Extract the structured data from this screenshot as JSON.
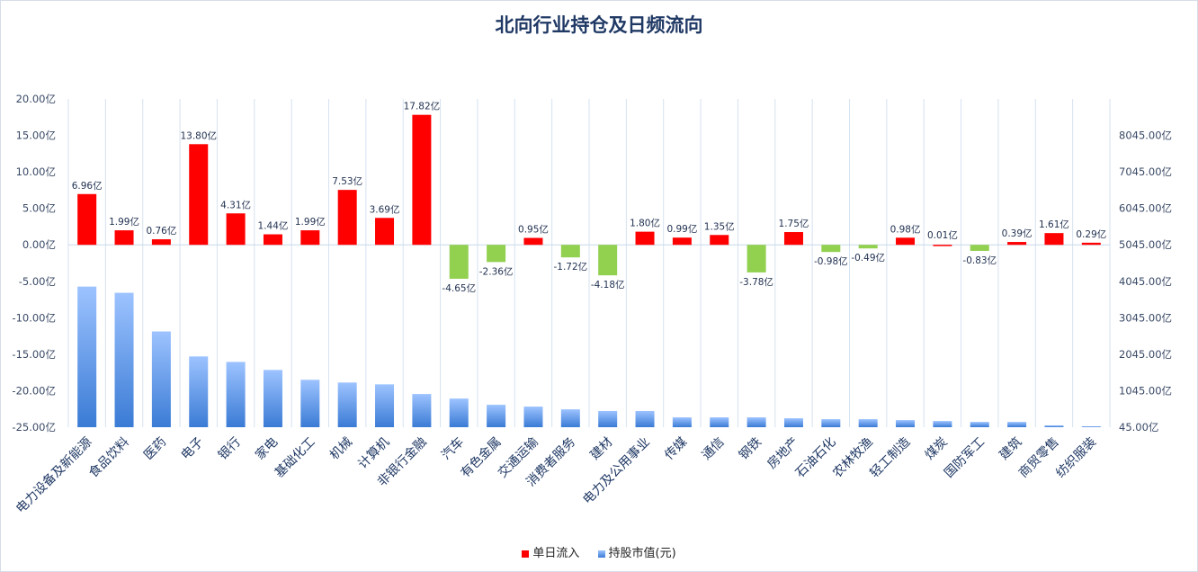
{
  "chart_data": {
    "type": "bar",
    "title": "北向行业持仓及日频流向",
    "categories": [
      "电力设备及新能源",
      "食品饮料",
      "医药",
      "电子",
      "银行",
      "家电",
      "基础化工",
      "机械",
      "计算机",
      "非银行金融",
      "汽车",
      "有色金属",
      "交通运输",
      "消费者服务",
      "建材",
      "电力及公用事业",
      "传媒",
      "通信",
      "钢铁",
      "房地产",
      "石油石化",
      "农林牧渔",
      "轻工制造",
      "煤炭",
      "国防军工",
      "建筑",
      "商贸零售",
      "纺织服装"
    ],
    "series": [
      {
        "name": "单日流入",
        "axis": "left",
        "unit": "亿",
        "values": [
          6.96,
          1.99,
          0.76,
          13.8,
          4.31,
          1.44,
          1.99,
          7.53,
          3.69,
          17.82,
          -4.65,
          -2.36,
          0.95,
          -1.72,
          -4.18,
          1.8,
          0.99,
          1.35,
          -3.78,
          1.75,
          -0.98,
          -0.49,
          0.98,
          0.01,
          -0.83,
          0.39,
          1.61,
          0.29
        ],
        "labels": [
          "6.96亿",
          "1.99亿",
          "0.76亿",
          "13.80亿",
          "4.31亿",
          "1.44亿",
          "1.99亿",
          "7.53亿",
          "3.69亿",
          "17.82亿",
          "-4.65亿",
          "-2.36亿",
          "0.95亿",
          "-1.72亿",
          "-4.18亿",
          "1.80亿",
          "0.99亿",
          "1.35亿",
          "-3.78亿",
          "1.75亿",
          "-0.98亿",
          "-0.49亿",
          "0.98亿",
          "0.01亿",
          "-0.83亿",
          "0.39亿",
          "1.61亿",
          "0.29亿"
        ]
      },
      {
        "name": "持股市值(元)",
        "axis": "right",
        "unit": "亿",
        "values": [
          3900,
          3730,
          2670,
          1985,
          1835,
          1615,
          1345,
          1270,
          1220,
          955,
          830,
          660,
          610,
          535,
          490,
          490,
          315,
          315,
          315,
          290,
          265,
          265,
          240,
          215,
          190,
          190,
          95,
          70
        ]
      }
    ],
    "left_axis": {
      "ylim": [
        -25,
        20
      ],
      "ticks": [
        "-25.00亿",
        "-20.00亿",
        "-15.00亿",
        "-10.00亿",
        "-5.00亿",
        "0.00亿",
        "5.00亿",
        "10.00亿",
        "15.00亿",
        "20.00亿"
      ]
    },
    "right_axis": {
      "ylim": [
        45,
        9045
      ],
      "ticks": [
        "45.00亿",
        "1045.00亿",
        "2045.00亿",
        "3045.00亿",
        "4045.00亿",
        "5045.00亿",
        "6045.00亿",
        "7045.00亿",
        "8045.00亿"
      ]
    },
    "colors": {
      "positive": "#ff0000",
      "negative": "#92d050",
      "holdings_top": "#9dc3ff",
      "holdings_bottom": "#3a7bd5",
      "grid": "#d5e2f0"
    },
    "legend": {
      "position": "bottom",
      "items": [
        "单日流入",
        "持股市值(元)"
      ]
    },
    "grid": "vertical category lines"
  }
}
